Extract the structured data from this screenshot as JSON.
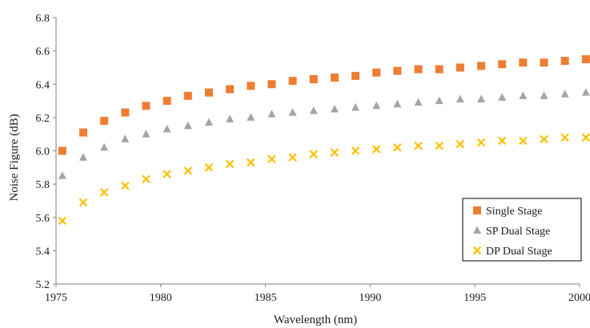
{
  "chart_data": {
    "type": "scatter",
    "title": "",
    "xlabel": "Wavelength (nm)",
    "ylabel": "Noise Figure (dB)",
    "xlim": [
      1975,
      2000
    ],
    "ylim": [
      5.2,
      6.8
    ],
    "x_ticks": [
      1975,
      1980,
      1985,
      1990,
      1995,
      2000
    ],
    "y_ticks": [
      5.2,
      5.4,
      5.6,
      5.8,
      6.0,
      6.2,
      6.4,
      6.6,
      6.8
    ],
    "x_tick_labels": [
      "1975",
      "1980",
      "1985",
      "1990",
      "1995",
      "2000"
    ],
    "y_tick_labels": [
      "5.2",
      "5.4",
      "5.6",
      "5.8",
      "6.0",
      "6.2",
      "6.4",
      "6.6",
      "6.8"
    ],
    "grid": false,
    "legend_position": "bottom-right",
    "x": [
      1975.3,
      1976.3,
      1977.3,
      1978.3,
      1979.3,
      1980.3,
      1981.3,
      1982.3,
      1983.3,
      1984.3,
      1985.3,
      1986.3,
      1987.3,
      1988.3,
      1989.3,
      1990.3,
      1991.3,
      1992.3,
      1993.3,
      1994.3,
      1995.3,
      1996.3,
      1997.3,
      1998.3,
      1999.3,
      2000.3
    ],
    "series": [
      {
        "name": "Single Stage",
        "marker": "square",
        "color": "#ED7D31",
        "values": [
          6.0,
          6.11,
          6.18,
          6.23,
          6.27,
          6.3,
          6.33,
          6.35,
          6.37,
          6.39,
          6.4,
          6.42,
          6.43,
          6.44,
          6.45,
          6.47,
          6.48,
          6.49,
          6.49,
          6.5,
          6.51,
          6.52,
          6.53,
          6.53,
          6.54,
          6.55
        ]
      },
      {
        "name": "SP Dual Stage",
        "marker": "triangle",
        "color": "#A5A5A5",
        "values": [
          5.85,
          5.96,
          6.02,
          6.07,
          6.1,
          6.13,
          6.15,
          6.17,
          6.19,
          6.2,
          6.22,
          6.23,
          6.24,
          6.25,
          6.26,
          6.27,
          6.28,
          6.29,
          6.3,
          6.31,
          6.31,
          6.32,
          6.33,
          6.33,
          6.34,
          6.35
        ]
      },
      {
        "name": "DP Dual Stage",
        "marker": "x",
        "color": "#FFC000",
        "values": [
          5.58,
          5.69,
          5.75,
          5.79,
          5.83,
          5.86,
          5.88,
          5.9,
          5.92,
          5.93,
          5.95,
          5.96,
          5.98,
          5.99,
          6.0,
          6.01,
          6.02,
          6.03,
          6.03,
          6.04,
          6.05,
          6.06,
          6.06,
          6.07,
          6.08,
          6.08
        ]
      }
    ]
  }
}
